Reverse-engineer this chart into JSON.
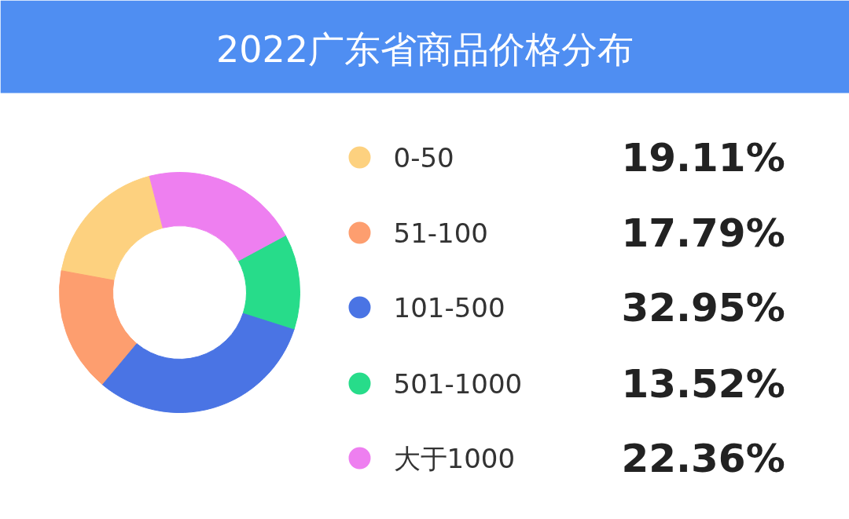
{
  "chart_data": {
    "type": "donut",
    "title": "2022广东省商品价格分布",
    "categories": [
      "0-50",
      "51-100",
      "101-500",
      "501-1000",
      "大于1000"
    ],
    "values": [
      19.11,
      17.79,
      32.95,
      13.52,
      22.36
    ],
    "colors": [
      "#fdd17f",
      "#fd9e6f",
      "#4a74e4",
      "#27dc8a",
      "#ee7ff0"
    ],
    "value_labels": [
      "19.11%",
      "17.79%",
      "32.95%",
      "13.52%",
      "22.36%"
    ],
    "legend": "right"
  }
}
